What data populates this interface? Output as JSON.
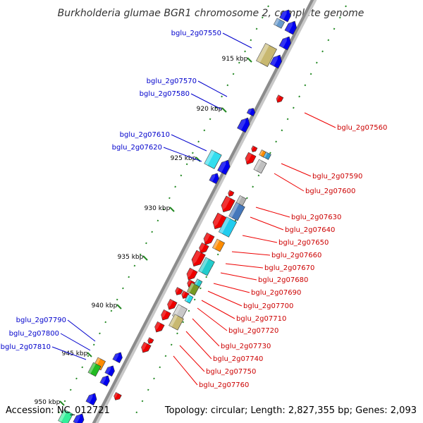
{
  "title": "Burkholderia glumae BGR1 chromosome 2, complete genome",
  "accession": "Accession: NC_012721",
  "summary": "Topology: circular; Length: 2,827,355 bp; Genes: 2,093",
  "colors": {
    "forward_gene": "#0000ee",
    "reverse_gene": "#ee0000",
    "forward_label": "#0000cc",
    "reverse_label": "#cc0000",
    "backbone": "#9a9a9a",
    "tick_dots": "#228822"
  },
  "kbp_ticks": [
    "915 kbp",
    "920 kbp",
    "925 kbp",
    "930 kbp",
    "935 kbp",
    "940 kbp",
    "945 kbp",
    "950 kbp"
  ],
  "forward_labels": [
    "bglu_2g07550",
    "bglu_2g07570",
    "bglu_2g07580",
    "bglu_2g07610",
    "bglu_2g07620",
    "bglu_2g07790",
    "bglu_2g07800",
    "bglu_2g07810"
  ],
  "reverse_labels": [
    "bglu_2g07560",
    "bglu_2g07590",
    "bglu_2g07600",
    "bglu_2g07630",
    "bglu_2g07640",
    "bglu_2g07650",
    "bglu_2g07660",
    "bglu_2g07670",
    "bglu_2g07680",
    "bglu_2g07690",
    "bglu_2g07700",
    "bglu_2g07710",
    "bglu_2g07720",
    "bglu_2g07730",
    "bglu_2g07740",
    "bglu_2g07750",
    "bglu_2g07760"
  ]
}
